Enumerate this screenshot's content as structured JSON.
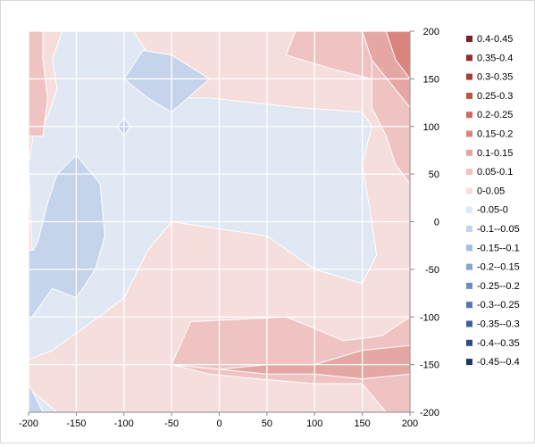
{
  "chart_data": {
    "type": "contour",
    "title": "",
    "xlabel": "",
    "ylabel": "",
    "xlim": [
      -200,
      200
    ],
    "ylim": [
      -200,
      200
    ],
    "grid": true,
    "y_axis_side": "right",
    "legend_position": "right",
    "x_ticks": [
      "-200",
      "-150",
      "-100",
      "-50",
      "0",
      "50",
      "100",
      "150",
      "200"
    ],
    "y_ticks": [
      "200",
      "150",
      "100",
      "50",
      "0",
      "-50",
      "-100",
      "-150",
      "-200"
    ],
    "legend": [
      {
        "label": "0.4-0.45",
        "color": "#7b2324"
      },
      {
        "label": "0.35-0.4",
        "color": "#91302d"
      },
      {
        "label": "0.3-0.35",
        "color": "#a84038"
      },
      {
        "label": "0.25-0.3",
        "color": "#bc5549"
      },
      {
        "label": "0.2-0.25",
        "color": "#cb6b62"
      },
      {
        "label": "0.15-0.2",
        "color": "#d88580"
      },
      {
        "label": "0.1-0.15",
        "color": "#e4a7a4"
      },
      {
        "label": "0.05-0.1",
        "color": "#efc3c1"
      },
      {
        "label": "0-0.05",
        "color": "#f6dedd"
      },
      {
        "label": "-0.05-0",
        "color": "#dfe8f3"
      },
      {
        "label": "-0.1--0.05",
        "color": "#c5d4ea"
      },
      {
        "label": "-0.15--0.1",
        "color": "#a6bddc"
      },
      {
        "label": "-0.2--0.15",
        "color": "#87a5cf"
      },
      {
        "label": "-0.25--0.2",
        "color": "#6b8dc1"
      },
      {
        "label": "-0.3--0.25",
        "color": "#5176b0"
      },
      {
        "label": "-0.35--0.3",
        "color": "#3c609a"
      },
      {
        "label": "-0.4--0.35",
        "color": "#2d4c80"
      },
      {
        "label": "-0.45--0.4",
        "color": "#1f3863"
      }
    ],
    "regions": [
      {
        "band": "0-0.05",
        "color": "#f6dedd",
        "points": [
          [
            -200,
            200
          ],
          [
            200,
            200
          ],
          [
            200,
            -200
          ],
          [
            -200,
            -200
          ]
        ]
      },
      {
        "band": "-0.05-0",
        "color": "#dfe8f3",
        "points": [
          [
            -160,
            200
          ],
          [
            -130,
            200
          ],
          [
            -100,
            200
          ],
          [
            -90,
            200
          ],
          [
            -45,
            130
          ],
          [
            -10,
            130
          ],
          [
            80,
            120
          ],
          [
            150,
            115
          ],
          [
            160,
            100
          ],
          [
            150,
            60
          ],
          [
            160,
            0
          ],
          [
            165,
            -35
          ],
          [
            150,
            -65
          ],
          [
            100,
            -50
          ],
          [
            50,
            -15
          ],
          [
            -50,
            0
          ],
          [
            -75,
            -30
          ],
          [
            -100,
            -80
          ],
          [
            -140,
            -110
          ],
          [
            -175,
            -135
          ],
          [
            -200,
            -145
          ],
          [
            -200,
            -105
          ],
          [
            -195,
            -60
          ],
          [
            -200,
            60
          ],
          [
            -195,
            90
          ],
          [
            -180,
            110
          ],
          [
            -170,
            140
          ],
          [
            -175,
            170
          ],
          [
            -165,
            200
          ]
        ]
      },
      {
        "band": "-0.05-0",
        "color": "#dfe8f3",
        "points": [
          [
            -200,
            -175
          ],
          [
            -190,
            -200
          ],
          [
            -170,
            -200
          ]
        ]
      },
      {
        "band": "-0.1--0.05",
        "color": "#c5d4ea",
        "points": [
          [
            -100,
            150
          ],
          [
            -80,
            180
          ],
          [
            -50,
            175
          ],
          [
            -10,
            150
          ],
          [
            -50,
            115
          ],
          [
            -75,
            130
          ]
        ]
      },
      {
        "band": "-0.1--0.05",
        "color": "#c5d4ea",
        "points": [
          [
            -107,
            100
          ],
          [
            -100,
            108
          ],
          [
            -93,
            100
          ],
          [
            -100,
            90
          ]
        ]
      },
      {
        "band": "-0.1--0.05",
        "color": "#c5d4ea",
        "points": [
          [
            -200,
            -105
          ],
          [
            -175,
            -70
          ],
          [
            -150,
            -80
          ],
          [
            -130,
            -50
          ],
          [
            -120,
            -15
          ],
          [
            -125,
            40
          ],
          [
            -150,
            70
          ],
          [
            -170,
            50
          ],
          [
            -180,
            20
          ],
          [
            -190,
            -20
          ],
          [
            -195,
            -30
          ],
          [
            -200,
            -30
          ]
        ]
      },
      {
        "band": "-0.1--0.05",
        "color": "#c5d4ea",
        "points": [
          [
            -200,
            -170
          ],
          [
            -185,
            -200
          ],
          [
            -200,
            -200
          ]
        ]
      },
      {
        "band": "0.05-0.1",
        "color": "#efc3c1",
        "points": [
          [
            80,
            200
          ],
          [
            200,
            200
          ],
          [
            200,
            90
          ],
          [
            180,
            120
          ],
          [
            160,
            150
          ],
          [
            120,
            160
          ],
          [
            70,
            175
          ]
        ]
      },
      {
        "band": "0.05-0.1",
        "color": "#efc3c1",
        "points": [
          [
            175,
            -200
          ],
          [
            200,
            -200
          ],
          [
            200,
            -100
          ],
          [
            170,
            -120
          ],
          [
            130,
            -125
          ],
          [
            95,
            -110
          ],
          [
            70,
            -100
          ],
          [
            -30,
            -105
          ],
          [
            -50,
            -150
          ],
          [
            -10,
            -160
          ],
          [
            40,
            -165
          ],
          [
            100,
            -170
          ],
          [
            150,
            -170
          ]
        ]
      },
      {
        "band": "0.05-0.1",
        "color": "#efc3c1",
        "points": [
          [
            -200,
            200
          ],
          [
            -185,
            200
          ],
          [
            -185,
            170
          ],
          [
            -180,
            130
          ],
          [
            -185,
            90
          ],
          [
            -200,
            90
          ]
        ]
      },
      {
        "band": "0.05-0.1",
        "color": "#efc3c1",
        "points": [
          [
            160,
            200
          ],
          [
            200,
            200
          ],
          [
            200,
            40
          ],
          [
            185,
            60
          ],
          [
            175,
            90
          ],
          [
            160,
            120
          ]
        ]
      },
      {
        "band": "0.1-0.15",
        "color": "#e4a7a4",
        "points": [
          [
            150,
            200
          ],
          [
            200,
            200
          ],
          [
            200,
            120
          ],
          [
            180,
            145
          ],
          [
            160,
            170
          ]
        ]
      },
      {
        "band": "0.1-0.15",
        "color": "#e4a7a4",
        "points": [
          [
            -50,
            -150
          ],
          [
            0,
            -155
          ],
          [
            50,
            -150
          ],
          [
            100,
            -150
          ],
          [
            150,
            -135
          ],
          [
            200,
            -130
          ],
          [
            200,
            -160
          ],
          [
            150,
            -165
          ],
          [
            100,
            -160
          ],
          [
            50,
            -160
          ]
        ]
      },
      {
        "band": "0.15-0.2",
        "color": "#d88580",
        "points": [
          [
            175,
            200
          ],
          [
            200,
            200
          ],
          [
            200,
            150
          ],
          [
            185,
            170
          ]
        ]
      }
    ]
  }
}
